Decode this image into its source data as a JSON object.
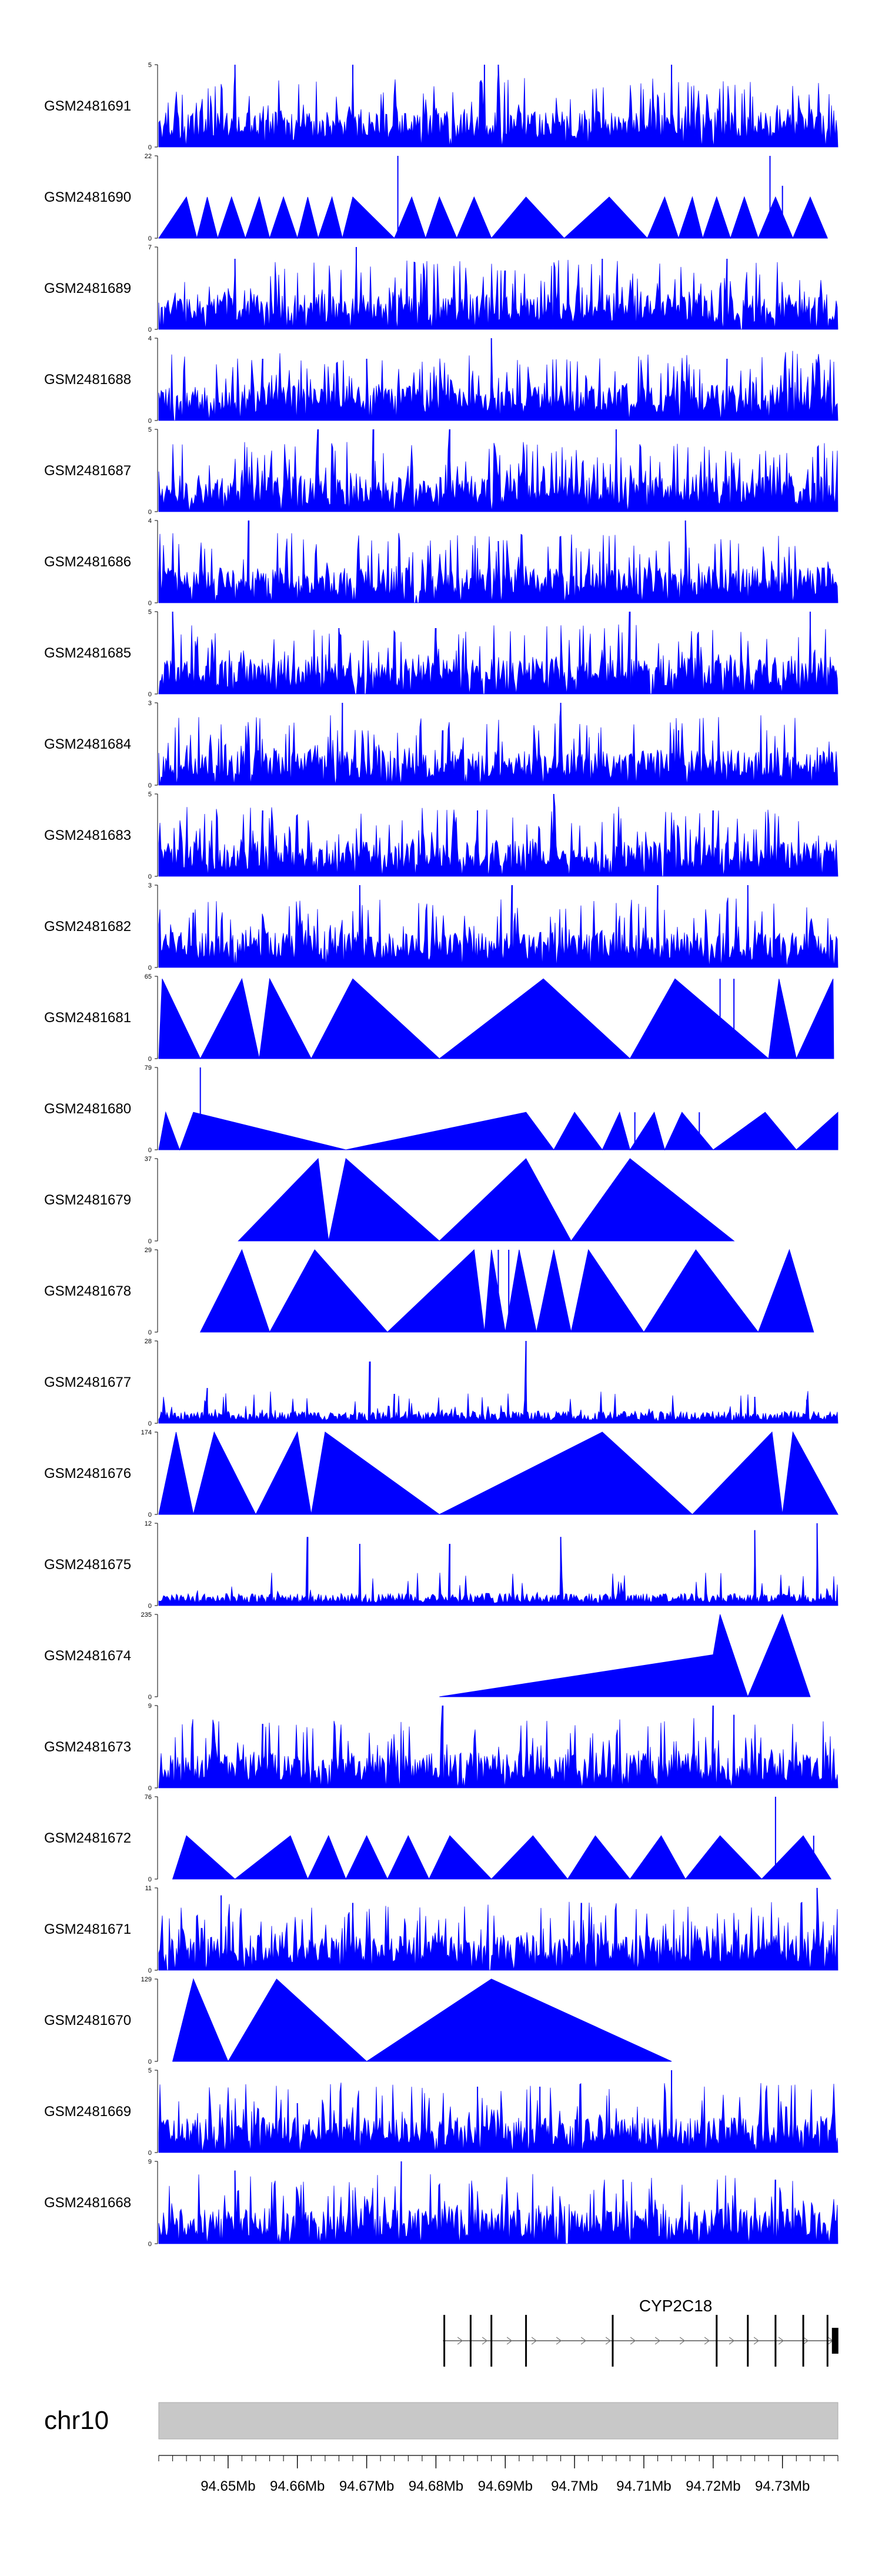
{
  "chart_data": {
    "type": "area",
    "fill_color": "#0000ff",
    "genome_axis": {
      "chromosome": "chr10",
      "start": 94640000,
      "end": 94738000,
      "tick_labels": [
        "94.65Mb",
        "94.66Mb",
        "94.67Mb",
        "94.68Mb",
        "94.69Mb",
        "94.7Mb",
        "94.71Mb",
        "94.72Mb",
        "94.73Mb"
      ],
      "major_ticks": [
        94650000,
        94660000,
        94670000,
        94680000,
        94690000,
        94700000,
        94710000,
        94720000,
        94730000
      ],
      "minor_tick_step": 2000
    },
    "gene": {
      "name": "CYP2C18",
      "strand": "+",
      "start": 94681000,
      "end": 94738000,
      "exons": [
        94681200,
        94685000,
        94688000,
        94693000,
        94705500,
        94720500,
        94725000,
        94729000,
        94733000,
        94736500,
        94737600
      ]
    },
    "tracks": [
      {
        "label": "GSM2481691",
        "ymax": 5,
        "style": "dense",
        "peaks": [
          [
            94651000,
            5
          ],
          [
            94668000,
            5
          ],
          [
            94687000,
            5
          ],
          [
            94689000,
            5
          ],
          [
            94714000,
            5
          ]
        ]
      },
      {
        "label": "GSM2481690",
        "ymax": 22,
        "style": "sparse",
        "points": [
          [
            94640000,
            0
          ],
          [
            94644000,
            11
          ],
          [
            94645500,
            0
          ],
          [
            94647000,
            11
          ],
          [
            94648500,
            0
          ],
          [
            94650500,
            11
          ],
          [
            94652500,
            0
          ],
          [
            94654500,
            11
          ],
          [
            94656000,
            0
          ],
          [
            94658000,
            11
          ],
          [
            94660000,
            0
          ],
          [
            94661500,
            11
          ],
          [
            94663000,
            0
          ],
          [
            94665000,
            11
          ],
          [
            94666500,
            0
          ],
          [
            94668000,
            11
          ],
          [
            94674000,
            0
          ],
          [
            94676500,
            11
          ],
          [
            94678500,
            0
          ],
          [
            94680500,
            11
          ],
          [
            94683000,
            0
          ],
          [
            94685500,
            11
          ],
          [
            94688000,
            0
          ],
          [
            94693000,
            11
          ],
          [
            94698500,
            0
          ],
          [
            94705000,
            11
          ],
          [
            94710500,
            0
          ],
          [
            94713000,
            11
          ],
          [
            94715000,
            0
          ],
          [
            94717000,
            11
          ],
          [
            94718500,
            0
          ],
          [
            94720500,
            11
          ],
          [
            94722500,
            0
          ],
          [
            94724500,
            11
          ],
          [
            94726500,
            0
          ],
          [
            94729000,
            11
          ],
          [
            94731500,
            0
          ],
          [
            94734000,
            11
          ],
          [
            94736500,
            0
          ]
        ],
        "spikes": [
          [
            94674500,
            22
          ],
          [
            94728200,
            22
          ],
          [
            94730000,
            14
          ]
        ]
      },
      {
        "label": "GSM2481689",
        "ymax": 7,
        "style": "dense",
        "peaks": [
          [
            94668500,
            7
          ],
          [
            94651000,
            6
          ],
          [
            94704000,
            6
          ],
          [
            94690000,
            5
          ],
          [
            94722000,
            6
          ]
        ]
      },
      {
        "label": "GSM2481688",
        "ymax": 4,
        "style": "dense",
        "peaks": [
          [
            94688000,
            4
          ],
          [
            94670000,
            3
          ],
          [
            94722000,
            3
          ],
          [
            94655000,
            3
          ]
        ]
      },
      {
        "label": "GSM2481687",
        "ymax": 5,
        "style": "dense",
        "peaks": [
          [
            94671000,
            5
          ],
          [
            94682000,
            5
          ],
          [
            94706000,
            5
          ],
          [
            94663000,
            5
          ]
        ]
      },
      {
        "label": "GSM2481686",
        "ymax": 4,
        "style": "dense",
        "peaks": [
          [
            94653000,
            4
          ],
          [
            94716000,
            4
          ],
          [
            94689000,
            3
          ]
        ]
      },
      {
        "label": "GSM2481685",
        "ymax": 5,
        "style": "dense",
        "peaks": [
          [
            94642000,
            5
          ],
          [
            94708000,
            5
          ],
          [
            94734000,
            5
          ],
          [
            94666000,
            4
          ],
          [
            94680000,
            4
          ]
        ]
      },
      {
        "label": "GSM2481684",
        "ymax": 3,
        "style": "dense",
        "peaks": [
          [
            94666500,
            3
          ],
          [
            94698000,
            3
          ],
          [
            94681000,
            2
          ],
          [
            94715000,
            2
          ]
        ]
      },
      {
        "label": "GSM2481683",
        "ymax": 5,
        "style": "dense",
        "peaks": [
          [
            94697000,
            5
          ],
          [
            94655000,
            4
          ],
          [
            94686000,
            4
          ],
          [
            94720000,
            4
          ]
        ]
      },
      {
        "label": "GSM2481682",
        "ymax": 3,
        "style": "dense",
        "peaks": [
          [
            94691000,
            3
          ],
          [
            94669000,
            3
          ],
          [
            94712000,
            3
          ],
          [
            94725000,
            3
          ],
          [
            94645000,
            2
          ]
        ]
      },
      {
        "label": "GSM2481681",
        "ymax": 65,
        "style": "sparse",
        "points": [
          [
            94640000,
            0
          ],
          [
            94640500,
            63
          ],
          [
            94646000,
            0
          ],
          [
            94652000,
            63
          ],
          [
            94654500,
            0
          ],
          [
            94656000,
            63
          ],
          [
            94662000,
            0
          ],
          [
            94668000,
            63
          ],
          [
            94680500,
            0
          ],
          [
            94695500,
            63
          ],
          [
            94708000,
            0
          ],
          [
            94714500,
            63
          ],
          [
            94728000,
            0
          ],
          [
            94729500,
            63
          ],
          [
            94732000,
            0
          ],
          [
            94737300,
            63
          ],
          [
            94737400,
            0
          ]
        ],
        "spikes": [
          [
            94721000,
            63
          ],
          [
            94723000,
            63
          ]
        ]
      },
      {
        "label": "GSM2481680",
        "ymax": 79,
        "style": "sparse",
        "points": [
          [
            94640000,
            0
          ],
          [
            94641000,
            36
          ],
          [
            94643000,
            0
          ],
          [
            94645000,
            36
          ],
          [
            94667000,
            0
          ],
          [
            94693000,
            36
          ],
          [
            94697000,
            0
          ],
          [
            94700000,
            36
          ],
          [
            94704000,
            0
          ],
          [
            94706500,
            36
          ],
          [
            94708000,
            0
          ],
          [
            94711500,
            36
          ],
          [
            94713000,
            0
          ],
          [
            94715500,
            36
          ],
          [
            94720000,
            0
          ],
          [
            94727500,
            36
          ],
          [
            94732000,
            0
          ],
          [
            94738000,
            36
          ]
        ],
        "spikes": [
          [
            94646000,
            79
          ],
          [
            94708700,
            36
          ],
          [
            94718000,
            36
          ]
        ]
      },
      {
        "label": "GSM2481679",
        "ymax": 37,
        "style": "sparse",
        "points": [
          [
            94651500,
            0
          ],
          [
            94663000,
            37
          ],
          [
            94664500,
            0
          ],
          [
            94667000,
            37
          ],
          [
            94680500,
            0
          ],
          [
            94693000,
            37
          ],
          [
            94699500,
            0
          ],
          [
            94708000,
            37
          ],
          [
            94723000,
            0
          ]
        ],
        "spikes": [
          [
            94693300,
            28
          ]
        ]
      },
      {
        "label": "GSM2481678",
        "ymax": 29,
        "style": "sparse",
        "points": [
          [
            94646000,
            0
          ],
          [
            94652000,
            29
          ],
          [
            94656000,
            0
          ],
          [
            94662500,
            29
          ],
          [
            94673000,
            0
          ],
          [
            94685500,
            29
          ],
          [
            94687000,
            0
          ],
          [
            94688000,
            29
          ],
          [
            94690000,
            0
          ],
          [
            94692000,
            29
          ],
          [
            94694500,
            0
          ],
          [
            94697000,
            29
          ],
          [
            94699500,
            0
          ],
          [
            94702000,
            29
          ],
          [
            94710000,
            0
          ],
          [
            94717500,
            29
          ],
          [
            94726500,
            0
          ],
          [
            94731000,
            29
          ],
          [
            94734500,
            0
          ]
        ],
        "spikes": [
          [
            94689000,
            29
          ],
          [
            94690500,
            29
          ]
        ]
      },
      {
        "label": "GSM2481677",
        "ymax": 28,
        "style": "noise",
        "peaks": [
          [
            94647000,
            12
          ],
          [
            94670500,
            21
          ],
          [
            94674000,
            10
          ],
          [
            94693000,
            28
          ],
          [
            94726000,
            9
          ],
          [
            94733500,
            8
          ]
        ]
      },
      {
        "label": "GSM2481676",
        "ymax": 174,
        "style": "sparse",
        "points": [
          [
            94640000,
            0
          ],
          [
            94642500,
            174
          ],
          [
            94645000,
            0
          ],
          [
            94648000,
            174
          ],
          [
            94654000,
            0
          ],
          [
            94660000,
            174
          ],
          [
            94662000,
            0
          ],
          [
            94664000,
            174
          ],
          [
            94680500,
            0
          ],
          [
            94704000,
            174
          ],
          [
            94717000,
            0
          ],
          [
            94728500,
            174
          ],
          [
            94730000,
            0
          ],
          [
            94731500,
            174
          ],
          [
            94738000,
            0
          ]
        ]
      },
      {
        "label": "GSM2481675",
        "ymax": 12,
        "style": "noise",
        "peaks": [
          [
            94661500,
            10
          ],
          [
            94698000,
            10
          ],
          [
            94726000,
            11
          ],
          [
            94735000,
            12
          ],
          [
            94669000,
            9
          ],
          [
            94682000,
            9
          ]
        ]
      },
      {
        "label": "GSM2481674",
        "ymax": 235,
        "style": "sparse",
        "points": [
          [
            94680500,
            0
          ],
          [
            94720000,
            120
          ],
          [
            94721000,
            235
          ],
          [
            94725000,
            0
          ],
          [
            94730000,
            235
          ],
          [
            94734000,
            0
          ]
        ]
      },
      {
        "label": "GSM2481673",
        "ymax": 9,
        "style": "dense",
        "peaks": [
          [
            94681000,
            9
          ],
          [
            94720000,
            9
          ],
          [
            94723000,
            8
          ],
          [
            94655000,
            7
          ]
        ]
      },
      {
        "label": "GSM2481672",
        "ymax": 76,
        "style": "sparse",
        "points": [
          [
            94642000,
            0
          ],
          [
            94644000,
            40
          ],
          [
            94651000,
            0
          ],
          [
            94659000,
            40
          ],
          [
            94661500,
            0
          ],
          [
            94664500,
            40
          ],
          [
            94667000,
            0
          ],
          [
            94670000,
            40
          ],
          [
            94673000,
            0
          ],
          [
            94676000,
            40
          ],
          [
            94679000,
            0
          ],
          [
            94682000,
            40
          ],
          [
            94688000,
            0
          ],
          [
            94694000,
            40
          ],
          [
            94699000,
            0
          ],
          [
            94703000,
            40
          ],
          [
            94708000,
            0
          ],
          [
            94712500,
            40
          ],
          [
            94716000,
            0
          ],
          [
            94721000,
            40
          ],
          [
            94727000,
            0
          ],
          [
            94733000,
            40
          ],
          [
            94737000,
            0
          ]
        ],
        "spikes": [
          [
            94729000,
            76
          ],
          [
            94734500,
            40
          ]
        ]
      },
      {
        "label": "GSM2481671",
        "ymax": 11,
        "style": "dense",
        "peaks": [
          [
            94649000,
            10
          ],
          [
            94735000,
            11
          ],
          [
            94701000,
            9
          ],
          [
            94668000,
            9
          ]
        ]
      },
      {
        "label": "GSM2481670",
        "ymax": 129,
        "style": "sparse",
        "points": [
          [
            94642000,
            0
          ],
          [
            94645000,
            129
          ],
          [
            94650000,
            0
          ],
          [
            94657000,
            129
          ],
          [
            94670000,
            0
          ],
          [
            94688000,
            129
          ],
          [
            94714000,
            0
          ]
        ]
      },
      {
        "label": "GSM2481669",
        "ymax": 5,
        "style": "dense",
        "peaks": [
          [
            94714000,
            5
          ],
          [
            94686000,
            4
          ],
          [
            94695000,
            4
          ],
          [
            94660000,
            3
          ]
        ]
      },
      {
        "label": "GSM2481668",
        "ymax": 9,
        "style": "dense",
        "peaks": [
          [
            94675000,
            9
          ],
          [
            94651000,
            8
          ],
          [
            94707000,
            7
          ],
          [
            94729000,
            7
          ]
        ]
      }
    ]
  }
}
